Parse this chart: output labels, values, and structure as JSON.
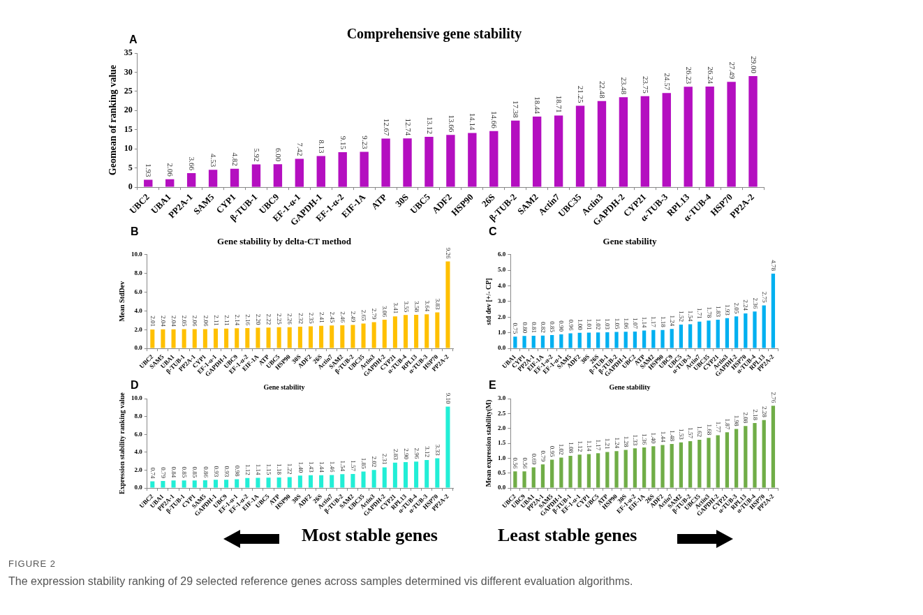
{
  "chart_data": [
    {
      "type": "bar",
      "title": "Comprehensive gene stability",
      "ylabel": "Geomean of ranking value",
      "annotations": [
        "A"
      ],
      "categories": [
        "UBC2",
        "UBA1",
        "PP2A-1",
        "SAM5",
        "CYP1",
        "β-TUB-1",
        "UBC9",
        "EF-1-α-1",
        "GAPDH-1",
        "EF-1-α-2",
        "EIF-1A",
        "ATP",
        "30S",
        "UBC5",
        "ADF2",
        "HSP90",
        "26S",
        "β-TUB-2",
        "SAM2",
        "Actin7",
        "UBC35",
        "Actin3",
        "GAPDH-2",
        "CYP21",
        "α-TUB-3",
        "RPL13",
        "α-TUB-4",
        "HSP70",
        "PP2A-2"
      ],
      "values": [
        1.93,
        2.06,
        3.66,
        4.53,
        4.82,
        5.92,
        6.0,
        7.42,
        8.13,
        9.15,
        9.23,
        12.67,
        12.74,
        13.12,
        13.66,
        14.14,
        14.66,
        17.38,
        18.44,
        18.71,
        21.25,
        22.48,
        23.48,
        23.75,
        24.57,
        26.23,
        26.24,
        27.49,
        29.0
      ],
      "value_labels": [
        "1.93",
        "2.06",
        "3.66",
        "4.53",
        "4.82",
        "5.92",
        "6.00",
        "7.42",
        "8.13",
        "9.15",
        "9.23",
        "12.67",
        "12.74",
        "13.12",
        "13.66",
        "14.14",
        "14.66",
        "17.38",
        "18.44",
        "18.71",
        "21.25",
        "22.48",
        "23.48",
        "23.75",
        "24.57",
        "26.23",
        "26.24",
        "27.49",
        "29.00"
      ],
      "color": "#b40fc0",
      "ylim": [
        0,
        35
      ],
      "yticks": [
        0,
        5,
        10,
        15,
        20,
        25,
        30,
        35
      ]
    },
    {
      "type": "bar",
      "title": "Gene stability by delta-CT method",
      "ylabel": "Mean StdDev",
      "annotations": [
        "B"
      ],
      "categories": [
        "UBC2",
        "SAM5",
        "UBA1",
        "β-TUB-1",
        "PP2A-1",
        "CYP1",
        "EF-1-α-1",
        "GAPDH-1",
        "UBC9",
        "EF-1-α-2",
        "EIF-1A",
        "ATP",
        "UBC5",
        "HSP90",
        "30S",
        "ADF2",
        "26S",
        "Actin7",
        "SAM2",
        "β-TUB-2",
        "UBC35",
        "Actin3",
        "GAPDH-2",
        "CYP21",
        "α-TUB-4",
        "RPL13",
        "α-TUB-3",
        "HSP70",
        "PP2A-2"
      ],
      "values": [
        2.01,
        2.04,
        2.04,
        2.05,
        2.06,
        2.06,
        2.11,
        2.11,
        2.14,
        2.16,
        2.2,
        2.22,
        2.25,
        2.26,
        2.32,
        2.35,
        2.41,
        2.45,
        2.46,
        2.49,
        2.65,
        2.79,
        3.06,
        3.41,
        3.55,
        3.58,
        3.64,
        3.83,
        9.26
      ],
      "value_labels": [
        "2.01",
        "2.04",
        "2.04",
        "2.05",
        "2.06",
        "2.06",
        "2.11",
        "2.11",
        "2.14",
        "2.16",
        "2.20",
        "2.22",
        "2.25",
        "2.26",
        "2.32",
        "2.35",
        "2.41",
        "2.45",
        "2.46",
        "2.49",
        "2.65",
        "2.79",
        "3.06",
        "3.41",
        "3.55",
        "3.58",
        "3.64",
        "3.83",
        "9.26"
      ],
      "color": "#ffc000",
      "ylim": [
        0,
        10
      ],
      "yticks": [
        {
          "value": 0,
          "label": "0.0"
        },
        {
          "value": 2,
          "label": "2.0"
        },
        {
          "value": 4,
          "label": "4.0"
        },
        {
          "value": 6,
          "label": "6.0"
        },
        {
          "value": 8,
          "label": "8.0"
        },
        {
          "value": 10,
          "label": "10.0"
        }
      ]
    },
    {
      "type": "bar",
      "title": "Gene stability",
      "ylabel": "std dev [+/- CP]",
      "annotations": [
        "C"
      ],
      "categories": [
        "UBA1",
        "CYP1",
        "PP2A-1",
        "EIF-1A",
        "EF-1-α-2",
        "EF-1-α-1",
        "SAM5",
        "ADF2",
        "30S",
        "26S",
        "β-TUB-1",
        "β-TUB-2",
        "GAPDH-1",
        "UBC2",
        "ATP",
        "SAM2",
        "HSP90",
        "UBC9",
        "UBC5",
        "α-TUB-3",
        "Actin7",
        "UBC35",
        "CYP21",
        "Actin3",
        "GAPDH-2",
        "HSP70",
        "α-TUB-4",
        "RPL13",
        "PP2A-2"
      ],
      "values": [
        0.75,
        0.8,
        0.81,
        0.82,
        0.85,
        0.9,
        0.96,
        1.0,
        1.01,
        1.02,
        1.03,
        1.05,
        1.06,
        1.07,
        1.14,
        1.17,
        1.18,
        1.24,
        1.52,
        1.54,
        1.71,
        1.78,
        1.83,
        1.93,
        2.05,
        2.24,
        2.36,
        2.75,
        4.78
      ],
      "value_labels": [
        "0.75",
        "0.80",
        "0.81",
        "0.82",
        "0.85",
        "0.90",
        "0.96",
        "1.00",
        "1.01",
        "1.02",
        "1.03",
        "1.05",
        "1.06",
        "1.07",
        "1.14",
        "1.17",
        "1.18",
        "1.24",
        "1.52",
        "1.54",
        "1.71",
        "1.78",
        "1.83",
        "1.93",
        "2.05",
        "2.24",
        "2.36",
        "2.75",
        "4.78"
      ],
      "color": "#00b0f0",
      "ylim": [
        0,
        6
      ],
      "yticks": [
        {
          "value": 0,
          "label": "0.0"
        },
        {
          "value": 1,
          "label": "1.0"
        },
        {
          "value": 2,
          "label": "2.0"
        },
        {
          "value": 3,
          "label": "3.0"
        },
        {
          "value": 4,
          "label": "4.0"
        },
        {
          "value": 5,
          "label": "5.0"
        },
        {
          "value": 6,
          "label": "6.0"
        }
      ]
    },
    {
      "type": "bar",
      "title": "Gene stability",
      "ylabel": "Expression stability ranking value",
      "annotations": [
        "D",
        "Most stable genes"
      ],
      "categories": [
        "UBC2",
        "UBA1",
        "PP2A-1",
        "β-TUB-1",
        "CYP1",
        "SAM5",
        "GAPDH-1",
        "UBC9",
        "EF-1-α-1",
        "EF-1-α-2",
        "EIF-1A",
        "UBC5",
        "ATP",
        "HSP90",
        "30S",
        "ADF2",
        "26S",
        "Actin7",
        "β-TUB-2",
        "SAM2",
        "UBC35",
        "Actin3",
        "GAPDH-2",
        "CYP21",
        "RPL13",
        "α-TUB-4",
        "α-TUB-3",
        "HSP70",
        "PP2A-2"
      ],
      "values": [
        0.74,
        0.79,
        0.84,
        0.85,
        0.85,
        0.86,
        0.93,
        0.93,
        0.98,
        1.12,
        1.14,
        1.15,
        1.18,
        1.22,
        1.4,
        1.43,
        1.44,
        1.46,
        1.54,
        1.57,
        1.85,
        2.02,
        2.31,
        2.83,
        2.9,
        2.96,
        3.12,
        3.33,
        9.1
      ],
      "value_labels": [
        "0.74",
        "0.79",
        "0.84",
        "0.85",
        "0.85",
        "0.86",
        "0.93",
        "0.93",
        "0.98",
        "1.12",
        "1.14",
        "1.15",
        "1.18",
        "1.22",
        "1.40",
        "1.43",
        "1.44",
        "1.46",
        "1.54",
        "1.57",
        "1.85",
        "2.02",
        "2.31",
        "2.83",
        "2.90",
        "2.96",
        "3.12",
        "3.33",
        "9.10"
      ],
      "color": "#22eed6",
      "ylim": [
        0,
        10
      ],
      "yticks": [
        {
          "value": 0,
          "label": "0.0"
        },
        {
          "value": 2,
          "label": "2.0"
        },
        {
          "value": 4,
          "label": "4.0"
        },
        {
          "value": 6,
          "label": "6.0"
        },
        {
          "value": 8,
          "label": "8.0"
        },
        {
          "value": 10,
          "label": "10.0"
        }
      ]
    },
    {
      "type": "bar",
      "title": "Gene stability",
      "ylabel": "Mean expression stability(M)",
      "annotations": [
        "E",
        "Least stable genes",
        "FIGURE 2",
        "The expression stability ranking of 29 selected reference genes across samples determined vis different evaluation algorithms."
      ],
      "categories": [
        "UBC2",
        "UBC9",
        "UBA1",
        "PP2A-1",
        "SAM5",
        "GAPDH-1",
        "β-TUB-1",
        "EF-1-α-1",
        "CYP1",
        "UBC5",
        "ATP",
        "HSP90",
        "30S",
        "EF-1-α-2",
        "EIF-1A",
        "26S",
        "ADF2",
        "Actin7",
        "SAM2",
        "β-TUB-2",
        "UBC35",
        "Actin3",
        "GAPDH-2",
        "CYP21",
        "α-TUB-3",
        "RPL13",
        "α-TUB-4",
        "HSP70",
        "PP2A-2"
      ],
      "values": [
        0.56,
        0.56,
        0.69,
        0.79,
        0.95,
        1.02,
        1.08,
        1.12,
        1.14,
        1.17,
        1.21,
        1.24,
        1.28,
        1.33,
        1.36,
        1.4,
        1.44,
        1.48,
        1.53,
        1.57,
        1.62,
        1.68,
        1.77,
        1.87,
        1.98,
        2.08,
        2.18,
        2.28,
        2.76
      ],
      "value_labels": [
        "0.56",
        "0.56",
        "0.69",
        "0.79",
        "0.95",
        "1.02",
        "1.08",
        "1.12",
        "1.14",
        "1.17",
        "1.21",
        "1.24",
        "1.28",
        "1.33",
        "1.36",
        "1.40",
        "1.44",
        "1.48",
        "1.53",
        "1.57",
        "1.62",
        "1.68",
        "1.77",
        "1.87",
        "1.98",
        "2.08",
        "2.18",
        "2.28",
        "2.76"
      ],
      "color": "#70ad47",
      "ylim": [
        0,
        3
      ],
      "yticks": [
        {
          "value": 0,
          "label": "0.0"
        },
        {
          "value": 0.5,
          "label": "0.5"
        },
        {
          "value": 1,
          "label": "1.0"
        },
        {
          "value": 1.5,
          "label": "1.5"
        },
        {
          "value": 2,
          "label": "2.0"
        },
        {
          "value": 2.5,
          "label": "2.5"
        },
        {
          "value": 3,
          "label": "3.0"
        }
      ]
    }
  ]
}
